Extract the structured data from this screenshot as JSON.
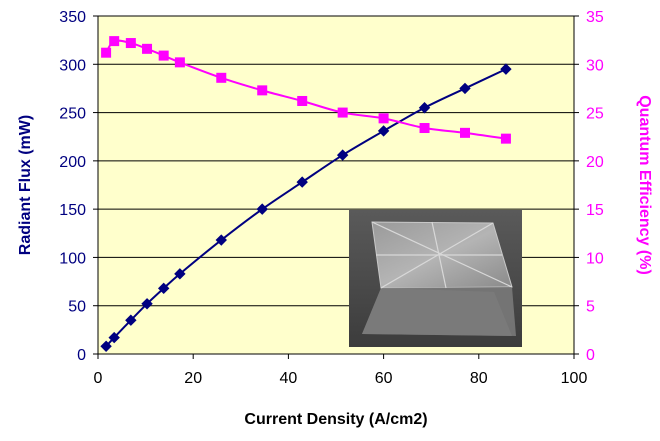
{
  "chart_data": {
    "type": "line",
    "title": "",
    "xlabel": "Current Density (A/cm2)",
    "ylabel": "Radiant Flux (mW)",
    "y2label": "Quantum Efficiency (%)",
    "xlim": [
      0,
      100
    ],
    "ylim": [
      0,
      350
    ],
    "y2lim": [
      0,
      35
    ],
    "x_ticks": [
      0,
      20,
      40,
      60,
      80,
      100
    ],
    "y_ticks": [
      0,
      50,
      100,
      150,
      200,
      250,
      300,
      350
    ],
    "y2_ticks": [
      0,
      5,
      10,
      15,
      20,
      25,
      30,
      35
    ],
    "grid": "horizontal",
    "legend": "none",
    "plot_background": "#ffffcc",
    "inset_image": "chip-photo",
    "series": [
      {
        "axis": "left",
        "marker": "diamond",
        "color": "#000080",
        "points": [
          [
            1.7,
            8
          ],
          [
            3.4,
            17
          ],
          [
            6.9,
            35
          ],
          [
            10.3,
            52
          ],
          [
            13.8,
            68
          ],
          [
            17.2,
            83
          ],
          [
            25.9,
            118
          ],
          [
            34.5,
            150
          ],
          [
            42.9,
            178
          ],
          [
            51.4,
            206
          ],
          [
            60,
            231
          ],
          [
            68.6,
            255
          ],
          [
            77.1,
            275
          ],
          [
            85.7,
            295
          ]
        ]
      },
      {
        "axis": "right",
        "marker": "square",
        "color": "#ff00ff",
        "points": [
          [
            1.7,
            31.2
          ],
          [
            3.4,
            32.4
          ],
          [
            6.9,
            32.2
          ],
          [
            10.3,
            31.6
          ],
          [
            13.8,
            30.9
          ],
          [
            17.2,
            30.2
          ],
          [
            25.9,
            28.6
          ],
          [
            34.5,
            27.3
          ],
          [
            42.9,
            26.2
          ],
          [
            51.4,
            25
          ],
          [
            60,
            24.4
          ],
          [
            68.6,
            23.4
          ],
          [
            77.1,
            22.9
          ],
          [
            85.7,
            22.3
          ]
        ]
      }
    ]
  }
}
